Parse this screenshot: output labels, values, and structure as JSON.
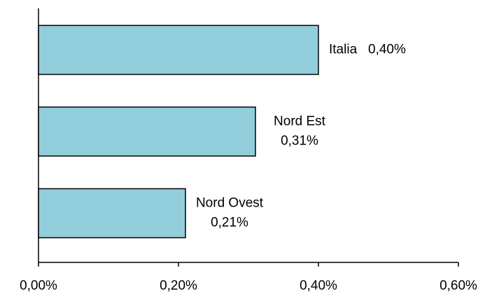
{
  "chart_data": {
    "type": "hbar",
    "categories": [
      "Italia",
      "Nord Est",
      "Nord Ovest"
    ],
    "values": [
      0.4,
      0.31,
      0.21
    ],
    "value_labels": [
      "0,40%",
      "0,31%",
      "0,21%"
    ],
    "color": "#92cddc",
    "xlim": [
      0,
      0.6
    ],
    "xticks": [
      {
        "value": 0,
        "label": "0,00%"
      },
      {
        "value": 0.2,
        "label": "0,20%"
      },
      {
        "value": 0.4,
        "label": "0,40%"
      },
      {
        "value": 0.6,
        "label": "0,60%"
      }
    ],
    "grid": false
  }
}
